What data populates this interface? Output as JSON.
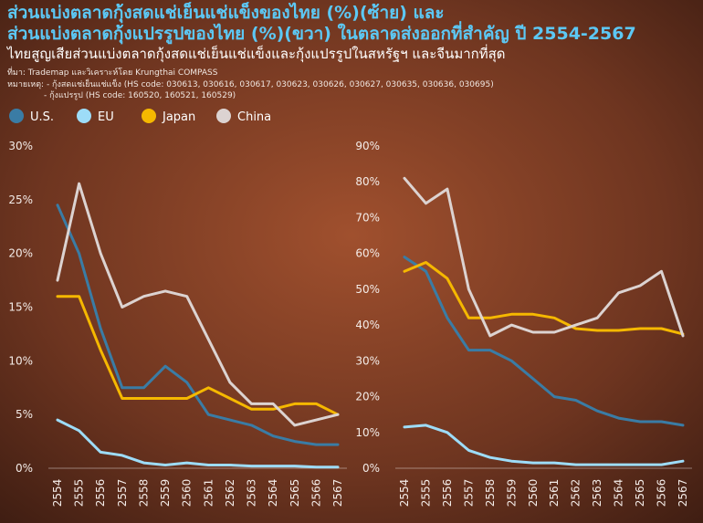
{
  "title_lines": [
    "ส่วนแบ่งตลาดกุ้งสดแช่เย็นแช่แข็งของไทย (%)(ซ้าย) และ",
    "ส่วนแบ่งตลาดกุ้งแปรรูปของไทย (%)(ขวา) ในตลาดส่งออกที่สำคัญ ปี 2554-2567"
  ],
  "subtitle": "ไทยสูญเสียส่วนแบ่งตลาดกุ้งสดแช่เย็นแช่แข็งและกุ้งแปรรูปในสหรัฐฯ และจีนมากที่สุด",
  "source": "ที่มา: Trademap และวิเคราะห์โดย Krungthai COMPASS",
  "notes": [
    "หมายเหตุ: - กุ้งสดแช่เย็นแช่แข็ง (HS code: 030613, 030616, 030617, 030623, 030626, 030627, 030635, 030636, 030695)",
    "- กุ้งแปรรูป (HS code: 160520, 160521, 160529)"
  ],
  "chart_data": [
    {
      "type": "line",
      "categories": [
        "2554",
        "2555",
        "2556",
        "2557",
        "2558",
        "2559",
        "2560",
        "2561",
        "2562",
        "2563",
        "2564",
        "2565",
        "2566",
        "2567"
      ],
      "ylim": [
        0,
        30
      ],
      "yticks": [
        {
          "value": 0,
          "label": "0%"
        },
        {
          "value": 5,
          "label": "5%"
        },
        {
          "value": 10,
          "label": "10%"
        },
        {
          "value": 15,
          "label": "15%"
        },
        {
          "value": 20,
          "label": "20%"
        },
        {
          "value": 25,
          "label": "25%"
        },
        {
          "value": 30,
          "label": "30%"
        }
      ],
      "series": [
        {
          "name": "U.S.",
          "color": "#3a7ca5",
          "values": [
            24.5,
            20,
            13,
            7.5,
            7.5,
            9.5,
            8,
            5,
            4.5,
            4,
            3,
            2.5,
            2.2,
            2.2
          ]
        },
        {
          "name": "EU",
          "color": "#9ddcf8",
          "values": [
            4.5,
            3.5,
            1.5,
            1.2,
            0.5,
            0.3,
            0.5,
            0.3,
            0.3,
            0.2,
            0.2,
            0.2,
            0.1,
            0.1
          ]
        },
        {
          "name": "Japan",
          "color": "#f5b800",
          "values": [
            16,
            16,
            11,
            6.5,
            6.5,
            6.5,
            6.5,
            7.5,
            6.5,
            5.5,
            5.5,
            6,
            6,
            5
          ]
        },
        {
          "name": "China",
          "color": "#dcd3d1",
          "values": [
            17.5,
            26.5,
            20,
            15,
            16,
            16.5,
            16,
            12,
            8,
            6,
            6,
            4,
            4.5,
            5
          ]
        }
      ]
    },
    {
      "type": "line",
      "categories": [
        "2554",
        "2555",
        "2556",
        "2557",
        "2558",
        "2559",
        "2560",
        "2561",
        "2562",
        "2563",
        "2564",
        "2565",
        "2566",
        "2567"
      ],
      "ylim": [
        0,
        90
      ],
      "yticks": [
        {
          "value": 0,
          "label": "0%"
        },
        {
          "value": 10,
          "label": "10%"
        },
        {
          "value": 20,
          "label": "20%"
        },
        {
          "value": 30,
          "label": "30%"
        },
        {
          "value": 40,
          "label": "40%"
        },
        {
          "value": 50,
          "label": "50%"
        },
        {
          "value": 60,
          "label": "60%"
        },
        {
          "value": 70,
          "label": "70%"
        },
        {
          "value": 80,
          "label": "80%"
        },
        {
          "value": 90,
          "label": "90%"
        }
      ],
      "series": [
        {
          "color": "#3a7ca5",
          "values": [
            59,
            55,
            42,
            33,
            33,
            30,
            25,
            20,
            19,
            16,
            14,
            13,
            13,
            12
          ]
        },
        {
          "color": "#9ddcf8",
          "values": [
            11.5,
            12,
            10,
            5,
            3,
            2,
            1.5,
            1.5,
            1,
            1,
            1,
            1,
            1,
            2
          ]
        },
        {
          "color": "#f5b800",
          "values": [
            55,
            57.5,
            53,
            42,
            42,
            43,
            43,
            42,
            39,
            38.5,
            38.5,
            39,
            39,
            37.5
          ]
        },
        {
          "color": "#dcd3d1",
          "values": [
            81,
            74,
            78,
            50,
            37,
            40,
            38,
            38,
            40,
            42,
            49,
            51,
            55,
            37
          ]
        }
      ]
    }
  ]
}
